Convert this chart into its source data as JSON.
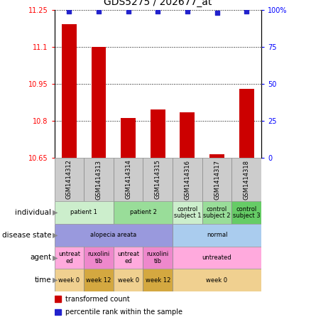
{
  "title": "GDS5275 / 202677_at",
  "samples": [
    "GSM1414312",
    "GSM1414313",
    "GSM1414314",
    "GSM1414315",
    "GSM1414316",
    "GSM1414317",
    "GSM1414318"
  ],
  "bar_values": [
    11.19,
    11.1,
    10.81,
    10.845,
    10.835,
    10.663,
    10.93
  ],
  "dot_values": [
    99,
    99,
    99,
    99,
    99,
    98,
    99
  ],
  "ylim_left": [
    10.65,
    11.25
  ],
  "ylim_right": [
    0,
    100
  ],
  "yticks_left": [
    10.65,
    10.8,
    10.95,
    11.1,
    11.25
  ],
  "ytick_labels_left": [
    "10.65",
    "10.8",
    "10.95",
    "11.1",
    "11.25"
  ],
  "yticks_right": [
    0,
    25,
    50,
    75,
    100
  ],
  "ytick_labels_right": [
    "0",
    "25",
    "50",
    "75",
    "100%"
  ],
  "bar_color": "#cc0000",
  "dot_color": "#2222cc",
  "sample_bg_color": "#cccccc",
  "rows": [
    {
      "label": "individual",
      "cells": [
        {
          "text": "patient 1",
          "colspan": 2,
          "color": "#cceecc"
        },
        {
          "text": "patient 2",
          "colspan": 2,
          "color": "#99dd99"
        },
        {
          "text": "control\nsubject 1",
          "colspan": 1,
          "color": "#cceecc"
        },
        {
          "text": "control\nsubject 2",
          "colspan": 1,
          "color": "#99dd99"
        },
        {
          "text": "control\nsubject 3",
          "colspan": 1,
          "color": "#66cc66"
        }
      ]
    },
    {
      "label": "disease state",
      "cells": [
        {
          "text": "alopecia areata",
          "colspan": 4,
          "color": "#9999dd"
        },
        {
          "text": "normal",
          "colspan": 3,
          "color": "#aaccee"
        }
      ]
    },
    {
      "label": "agent",
      "cells": [
        {
          "text": "untreat\ned",
          "colspan": 1,
          "color": "#ffaadd"
        },
        {
          "text": "ruxolini\ntib",
          "colspan": 1,
          "color": "#ee88cc"
        },
        {
          "text": "untreat\ned",
          "colspan": 1,
          "color": "#ffaadd"
        },
        {
          "text": "ruxolini\ntib",
          "colspan": 1,
          "color": "#ee88cc"
        },
        {
          "text": "untreated",
          "colspan": 3,
          "color": "#ffaadd"
        }
      ]
    },
    {
      "label": "time",
      "cells": [
        {
          "text": "week 0",
          "colspan": 1,
          "color": "#f0d090"
        },
        {
          "text": "week 12",
          "colspan": 1,
          "color": "#d4a840"
        },
        {
          "text": "week 0",
          "colspan": 1,
          "color": "#f0d090"
        },
        {
          "text": "week 12",
          "colspan": 1,
          "color": "#d4a840"
        },
        {
          "text": "week 0",
          "colspan": 3,
          "color": "#f0d090"
        }
      ]
    }
  ],
  "legend": [
    {
      "color": "#cc0000",
      "label": "transformed count"
    },
    {
      "color": "#2222cc",
      "label": "percentile rank within the sample"
    }
  ],
  "figsize": [
    4.38,
    4.53
  ],
  "dpi": 100
}
